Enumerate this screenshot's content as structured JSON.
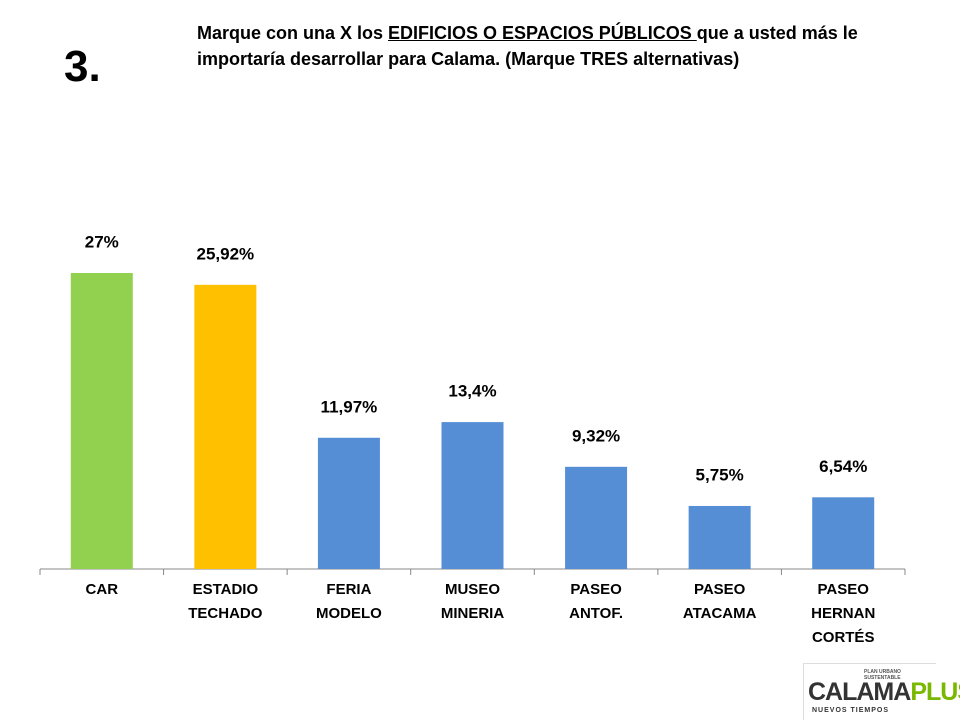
{
  "number": "3.",
  "question": {
    "before": "Marque con una X los ",
    "underlined": "EDIFICIOS O ESPACIOS PÚBLICOS ",
    "after": "que a usted más le importaría desarrollar para Calama. (Marque TRES alternativas)"
  },
  "logo": {
    "tagline": "PLAN URBANO SUSTENTABLE",
    "name": "CALAMA",
    "plus": "PLUS",
    "motto": "NUEVOS TIEMPOS"
  },
  "chart_data": {
    "type": "bar",
    "categories": [
      "CAR",
      "ESTADIO TECHADO",
      "FERIA MODELO",
      "MUSEO MINERIA",
      "PASEO ANTOF.",
      "PASEO ATACAMA",
      "PASEO HERNAN CORTÉS"
    ],
    "values": [
      27,
      25.92,
      11.97,
      13.4,
      9.32,
      5.75,
      6.54
    ],
    "value_labels": [
      "27%",
      "25,92%",
      "11,97%",
      "13,4%",
      "9,32%",
      "5,75%",
      "6,54%"
    ],
    "colors": [
      "#92d050",
      "#ffc000",
      "#558ed5",
      "#558ed5",
      "#558ed5",
      "#558ed5",
      "#558ed5"
    ]
  }
}
